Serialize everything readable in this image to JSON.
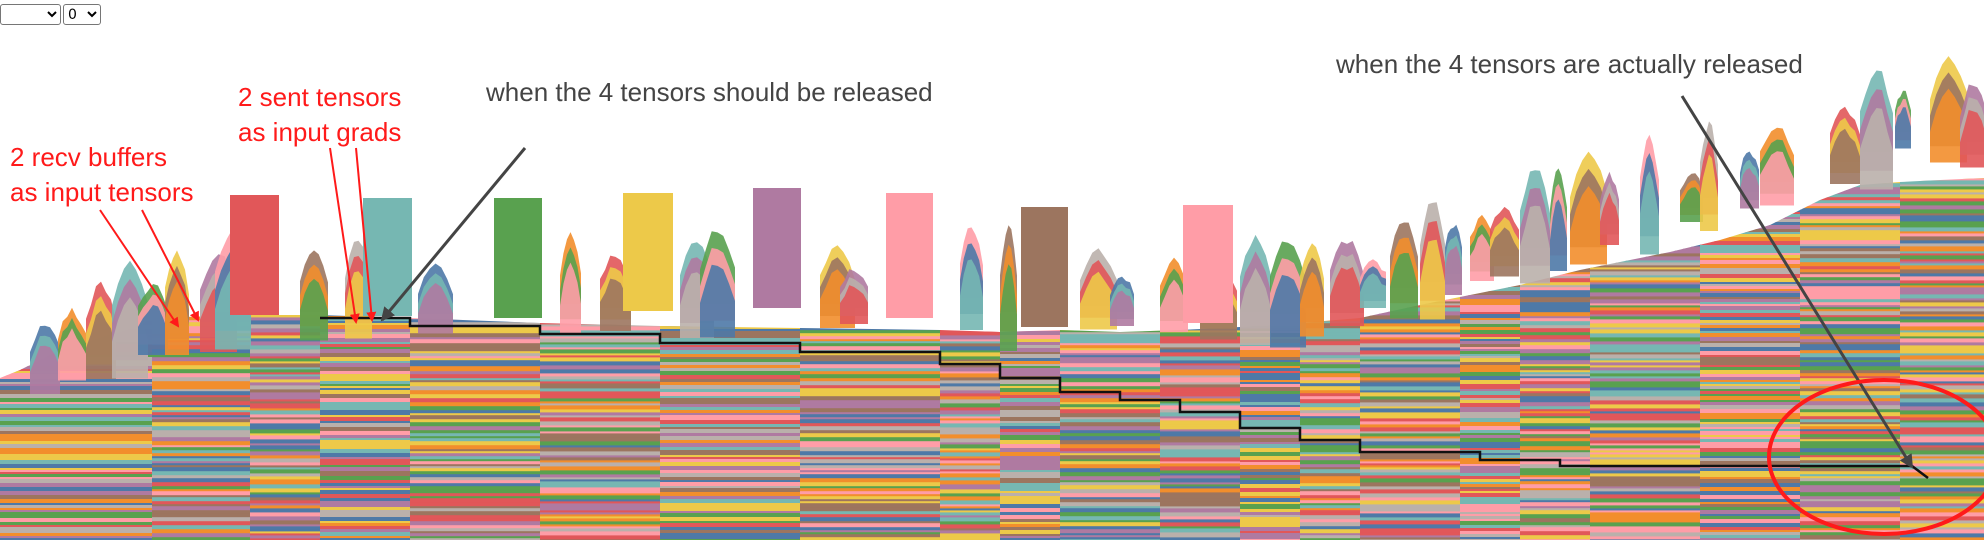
{
  "controls": {
    "snapshot_select": {
      "value": "",
      "options": [
        ""
      ]
    },
    "device_select": {
      "value": "0",
      "options": [
        "0"
      ]
    }
  },
  "annotations": {
    "recv_buffers": [
      "2 recv buffers",
      "as input tensors"
    ],
    "sent_tensors": [
      "2 sent tensors",
      "as input grads"
    ],
    "should_release": "when the 4 tensors should be released",
    "actually_release": "when the 4 tensors are actually released"
  },
  "colors": {
    "annotation_red": "#ff1a1a",
    "annotation_gray": "#444444",
    "arrow_gray": "#555555",
    "tracked_line": "#111111",
    "palette": [
      "#4e79a7",
      "#f28e2c",
      "#e15759",
      "#76b7b2",
      "#59a14f",
      "#edc949",
      "#af7aa1",
      "#ff9da7",
      "#9c755f",
      "#bab0ab"
    ]
  },
  "chart_data": {
    "type": "area",
    "description_free": true,
    "peak_block_colors": [
      "#e15759",
      "#76b7b2",
      "#59a14f",
      "#edc949",
      "#af7aa1",
      "#ff9da7",
      "#9c755f",
      "#ff9da7"
    ]
  }
}
